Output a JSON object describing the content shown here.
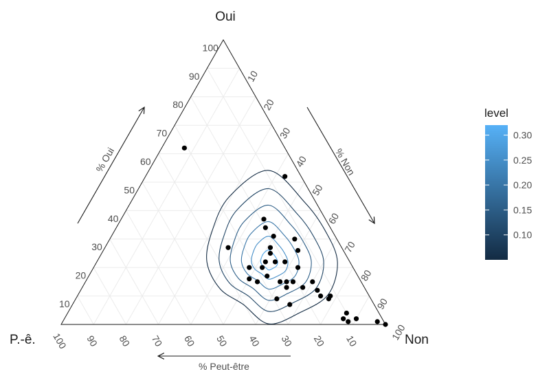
{
  "chart_data": {
    "type": "scatter",
    "subtype": "ternary-density-contour",
    "vertices": {
      "top": "Oui",
      "left": "P.-ê.",
      "right": "Non"
    },
    "arrows": {
      "left": "% Oui",
      "right": "% Non",
      "bottom": "% Peut-être"
    },
    "ticks": {
      "oui": [
        "10",
        "20",
        "30",
        "40",
        "50",
        "60",
        "70",
        "80",
        "90",
        "100"
      ],
      "non": [
        "10",
        "20",
        "30",
        "40",
        "50",
        "60",
        "70",
        "80",
        "90",
        "100"
      ],
      "peut_etre": [
        "10",
        "20",
        "30",
        "40",
        "50",
        "60",
        "70",
        "80",
        "90",
        "100"
      ]
    },
    "grid": true,
    "legend": {
      "title": "level",
      "placement": "right",
      "ticks": [
        "0.10",
        "0.15",
        "0.20",
        "0.25",
        "0.30"
      ],
      "tick_values": [
        0.1,
        0.15,
        0.2,
        0.25,
        0.3
      ],
      "range": [
        0.05,
        0.32
      ],
      "color_low": "#132b43",
      "color_high": "#56b1f7"
    },
    "contour_center": {
      "oui": 22,
      "non": 53
    },
    "contour_levels": [
      0.05,
      0.1,
      0.15,
      0.2,
      0.25,
      0.3
    ],
    "points": [
      {
        "oui": 62,
        "non": 7
      },
      {
        "oui": 52,
        "non": 43
      },
      {
        "oui": 37,
        "non": 44
      },
      {
        "oui": 34,
        "non": 46
      },
      {
        "oui": 31,
        "non": 50
      },
      {
        "oui": 30,
        "non": 57
      },
      {
        "oui": 27,
        "non": 38
      },
      {
        "oui": 27,
        "non": 51
      },
      {
        "oui": 26,
        "non": 60
      },
      {
        "oui": 25,
        "non": 52
      },
      {
        "oui": 22,
        "non": 52
      },
      {
        "oui": 22,
        "non": 55
      },
      {
        "oui": 22,
        "non": 58
      },
      {
        "oui": 20,
        "non": 48
      },
      {
        "oui": 20,
        "non": 52
      },
      {
        "oui": 20,
        "non": 63
      },
      {
        "oui": 17,
        "non": 55
      },
      {
        "oui": 16,
        "non": 50
      },
      {
        "oui": 15,
        "non": 53
      },
      {
        "oui": 15,
        "non": 60
      },
      {
        "oui": 15,
        "non": 62
      },
      {
        "oui": 15,
        "non": 64
      },
      {
        "oui": 15,
        "non": 70
      },
      {
        "oui": 13,
        "non": 63
      },
      {
        "oui": 13,
        "non": 68
      },
      {
        "oui": 12,
        "non": 73
      },
      {
        "oui": 10,
        "non": 75
      },
      {
        "oui": 10,
        "non": 78
      },
      {
        "oui": 9,
        "non": 78
      },
      {
        "oui": 9,
        "non": 62
      },
      {
        "oui": 7,
        "non": 67
      },
      {
        "oui": 4,
        "non": 86
      },
      {
        "oui": 2,
        "non": 90
      },
      {
        "oui": 1,
        "non": 97
      },
      {
        "oui": 0,
        "non": 100
      },
      {
        "oui": 1,
        "non": 88
      },
      {
        "oui": 2,
        "non": 86
      }
    ]
  }
}
